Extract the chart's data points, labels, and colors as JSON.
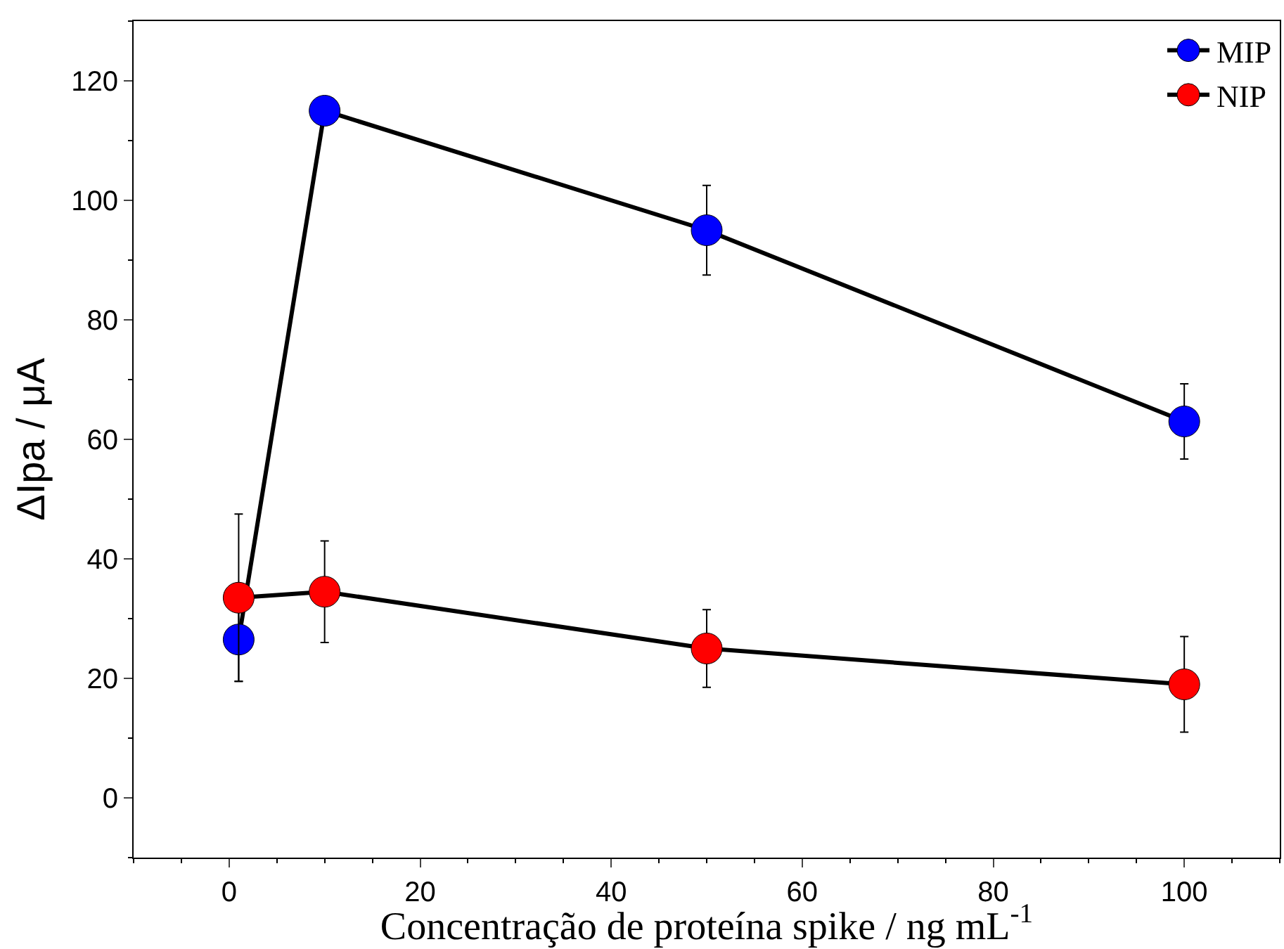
{
  "chart_data": {
    "type": "line",
    "xlabel": "Concentração de proteína spike / ng mL$^{-1}$",
    "ylabel": "ΔIpa / μA",
    "x": [
      1,
      10,
      50,
      100
    ],
    "series": [
      {
        "name": "MIP",
        "color": "#0000ff",
        "values": [
          26.5,
          115,
          95,
          63
        ],
        "errors": [
          7,
          null,
          7.5,
          6.3
        ]
      },
      {
        "name": "NIP",
        "color": "#ff0000",
        "values": [
          33.5,
          34.5,
          25,
          19
        ],
        "errors": [
          14,
          8.5,
          6.5,
          8
        ]
      }
    ],
    "xlim": [
      -10,
      110
    ],
    "ylim": [
      -10,
      130
    ],
    "xticks": [
      0,
      20,
      40,
      60,
      80,
      100
    ],
    "yticks": [
      0,
      20,
      40,
      60,
      80,
      100,
      120
    ],
    "legend": "top right",
    "marker": "circle",
    "line_style": "solid"
  }
}
